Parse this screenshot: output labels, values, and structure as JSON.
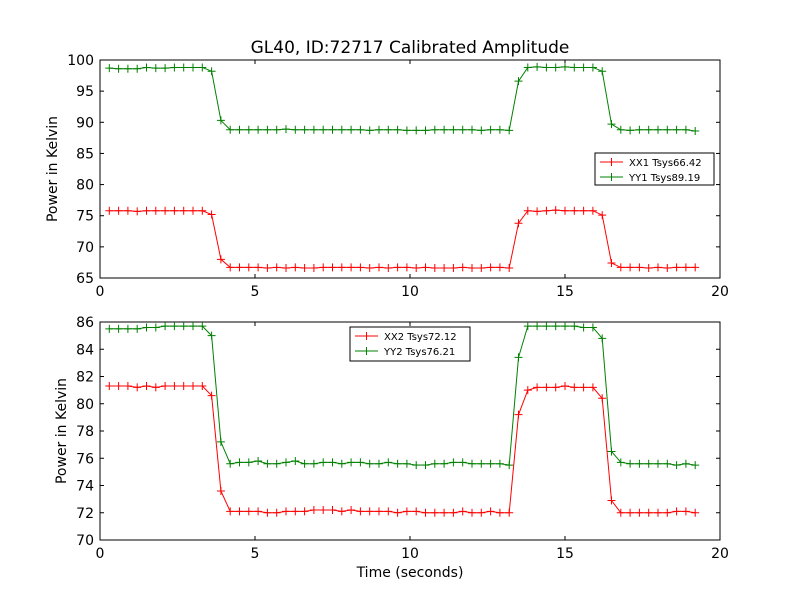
{
  "figure": {
    "title": "GL40, ID:72717 Calibrated Amplitude",
    "xlabel": "Time (seconds)"
  },
  "chart_data": [
    {
      "type": "line",
      "title": "GL40, ID:72717 Calibrated Amplitude",
      "xlabel": "",
      "ylabel": "Power in Kelvin",
      "xlim": [
        0,
        20
      ],
      "ylim": [
        65,
        100
      ],
      "xticks": [
        0,
        5,
        10,
        15,
        20
      ],
      "yticks": [
        65,
        70,
        75,
        80,
        85,
        90,
        95,
        100
      ],
      "grid": false,
      "legend": "center-right",
      "x": [
        0.3,
        0.6,
        0.9,
        1.2,
        1.5,
        1.8,
        2.1,
        2.4,
        2.7,
        3.0,
        3.3,
        3.6,
        3.9,
        4.2,
        4.5,
        4.8,
        5.1,
        5.4,
        5.7,
        6.0,
        6.3,
        6.6,
        6.9,
        7.2,
        7.5,
        7.8,
        8.1,
        8.4,
        8.7,
        9.0,
        9.3,
        9.6,
        9.9,
        10.2,
        10.5,
        10.8,
        11.1,
        11.4,
        11.7,
        12.0,
        12.3,
        12.6,
        12.9,
        13.2,
        13.5,
        13.8,
        14.1,
        14.4,
        14.7,
        15.0,
        15.3,
        15.6,
        15.9,
        16.2,
        16.5,
        16.8,
        17.1,
        17.4,
        17.7,
        18.0,
        18.3,
        18.6,
        18.9,
        19.2
      ],
      "series": [
        {
          "name": "XX1 Tsys66.42",
          "color": "#ff0000",
          "values": [
            75.8,
            75.8,
            75.8,
            75.7,
            75.8,
            75.8,
            75.8,
            75.8,
            75.8,
            75.8,
            75.8,
            75.2,
            68.0,
            66.7,
            66.7,
            66.7,
            66.7,
            66.6,
            66.7,
            66.6,
            66.7,
            66.6,
            66.6,
            66.7,
            66.7,
            66.7,
            66.7,
            66.7,
            66.6,
            66.7,
            66.6,
            66.7,
            66.7,
            66.6,
            66.7,
            66.6,
            66.6,
            66.6,
            66.7,
            66.6,
            66.6,
            66.7,
            66.7,
            66.6,
            73.8,
            75.8,
            75.7,
            75.8,
            75.9,
            75.8,
            75.8,
            75.8,
            75.8,
            75.1,
            67.4,
            66.7,
            66.7,
            66.7,
            66.6,
            66.7,
            66.6,
            66.7,
            66.7,
            66.7
          ]
        },
        {
          "name": "YY1 Tsys89.19",
          "color": "#008000",
          "values": [
            98.7,
            98.6,
            98.6,
            98.6,
            98.8,
            98.7,
            98.7,
            98.8,
            98.8,
            98.8,
            98.8,
            98.2,
            90.3,
            88.8,
            88.8,
            88.8,
            88.8,
            88.8,
            88.8,
            88.9,
            88.8,
            88.8,
            88.8,
            88.8,
            88.8,
            88.8,
            88.8,
            88.8,
            88.7,
            88.8,
            88.8,
            88.8,
            88.7,
            88.7,
            88.7,
            88.8,
            88.8,
            88.8,
            88.8,
            88.8,
            88.7,
            88.8,
            88.8,
            88.7,
            96.6,
            98.8,
            98.9,
            98.8,
            98.8,
            98.9,
            98.8,
            98.8,
            98.8,
            98.2,
            89.7,
            88.8,
            88.7,
            88.8,
            88.8,
            88.8,
            88.8,
            88.8,
            88.8,
            88.6
          ]
        }
      ]
    },
    {
      "type": "line",
      "title": "",
      "xlabel": "Time (seconds)",
      "ylabel": "Power in Kelvin",
      "xlim": [
        0,
        20
      ],
      "ylim": [
        70,
        86
      ],
      "xticks": [
        0,
        5,
        10,
        15,
        20
      ],
      "yticks": [
        70,
        72,
        74,
        76,
        78,
        80,
        82,
        84,
        86
      ],
      "grid": false,
      "legend": "upper-center",
      "x": [
        0.3,
        0.6,
        0.9,
        1.2,
        1.5,
        1.8,
        2.1,
        2.4,
        2.7,
        3.0,
        3.3,
        3.6,
        3.9,
        4.2,
        4.5,
        4.8,
        5.1,
        5.4,
        5.7,
        6.0,
        6.3,
        6.6,
        6.9,
        7.2,
        7.5,
        7.8,
        8.1,
        8.4,
        8.7,
        9.0,
        9.3,
        9.6,
        9.9,
        10.2,
        10.5,
        10.8,
        11.1,
        11.4,
        11.7,
        12.0,
        12.3,
        12.6,
        12.9,
        13.2,
        13.5,
        13.8,
        14.1,
        14.4,
        14.7,
        15.0,
        15.3,
        15.6,
        15.9,
        16.2,
        16.5,
        16.8,
        17.1,
        17.4,
        17.7,
        18.0,
        18.3,
        18.6,
        18.9,
        19.2
      ],
      "series": [
        {
          "name": "XX2 Tsys72.12",
          "color": "#ff0000",
          "values": [
            81.3,
            81.3,
            81.3,
            81.2,
            81.3,
            81.2,
            81.3,
            81.3,
            81.3,
            81.3,
            81.3,
            80.6,
            73.6,
            72.1,
            72.1,
            72.1,
            72.1,
            72.0,
            72.0,
            72.1,
            72.1,
            72.1,
            72.2,
            72.2,
            72.2,
            72.1,
            72.2,
            72.1,
            72.1,
            72.1,
            72.1,
            72.0,
            72.1,
            72.1,
            72.0,
            72.0,
            72.0,
            72.0,
            72.1,
            72.0,
            72.0,
            72.1,
            72.0,
            72.0,
            79.2,
            81.0,
            81.2,
            81.2,
            81.2,
            81.3,
            81.2,
            81.2,
            81.2,
            80.4,
            72.9,
            72.0,
            72.0,
            72.0,
            72.0,
            72.0,
            72.0,
            72.1,
            72.1,
            72.0
          ]
        },
        {
          "name": "YY2 Tsys76.21",
          "color": "#008000",
          "values": [
            85.5,
            85.5,
            85.5,
            85.5,
            85.6,
            85.6,
            85.7,
            85.7,
            85.7,
            85.7,
            85.7,
            85.0,
            77.2,
            75.6,
            75.7,
            75.7,
            75.8,
            75.6,
            75.6,
            75.7,
            75.8,
            75.6,
            75.6,
            75.7,
            75.7,
            75.6,
            75.7,
            75.7,
            75.6,
            75.6,
            75.7,
            75.6,
            75.6,
            75.5,
            75.5,
            75.6,
            75.6,
            75.7,
            75.7,
            75.6,
            75.6,
            75.6,
            75.6,
            75.5,
            83.4,
            85.7,
            85.7,
            85.7,
            85.7,
            85.7,
            85.7,
            85.6,
            85.6,
            84.8,
            76.5,
            75.7,
            75.6,
            75.6,
            75.6,
            75.6,
            75.6,
            75.5,
            75.6,
            75.5
          ]
        }
      ]
    }
  ]
}
